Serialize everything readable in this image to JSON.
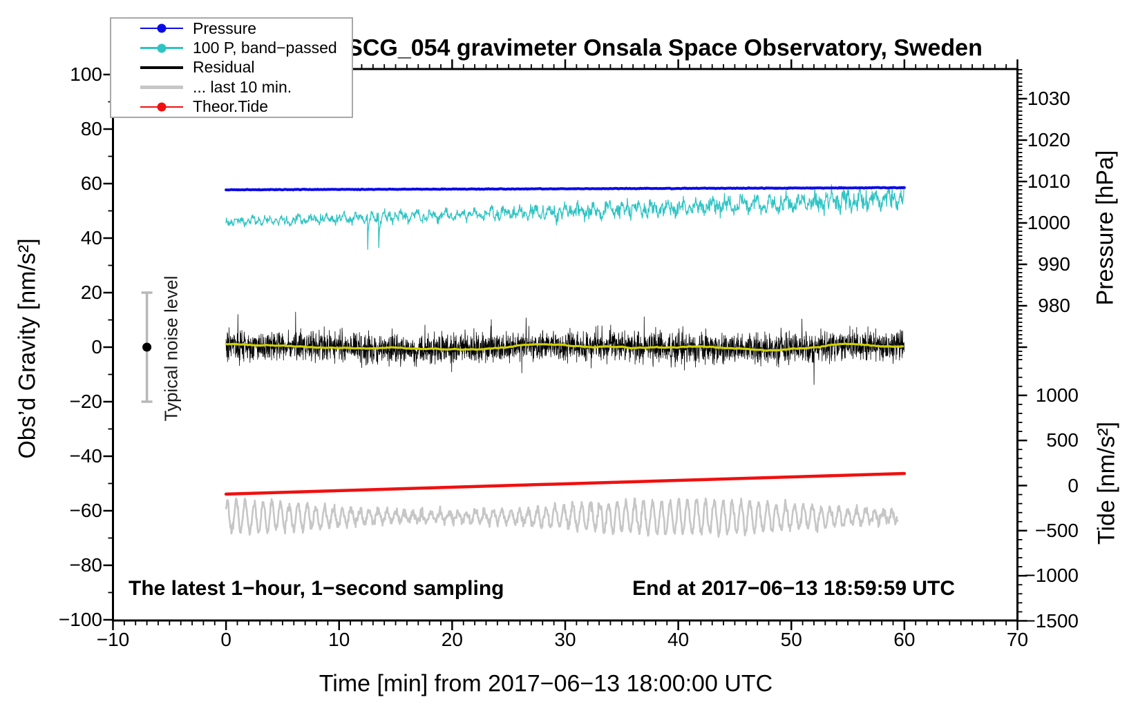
{
  "title": "SCG_054 gravimeter Onsala Space Observatory, Sweden",
  "annotations": {
    "sampling_note": "The latest 1−hour, 1−second sampling",
    "end_note": "End at 2017−06−13 18:59:59 UTC",
    "noise_label": "Typical noise level"
  },
  "legend": {
    "items": [
      {
        "label": "Pressure",
        "color": "#0b0be8",
        "marker": "dot",
        "line_width": 2.5
      },
      {
        "label": "100 P, band−passed",
        "color": "#2fc4c4",
        "marker": "dot",
        "line_width": 2.5
      },
      {
        "label": "Residual",
        "color": "#000000",
        "marker": "none",
        "line_width": 4
      },
      {
        "label": "... last 10 min.",
        "color": "#c6c6c6",
        "marker": "none",
        "line_width": 4.5
      },
      {
        "label": "Theor.Tide",
        "color": "#f01010",
        "marker": "dot",
        "line_width": 2.5
      }
    ]
  },
  "axes": {
    "x": {
      "title": "Time [min] from 2017−06−13 18:00:00 UTC",
      "min": -10,
      "max": 70,
      "minor_step": 1,
      "tick_values": [
        -10,
        0,
        10,
        20,
        30,
        40,
        50,
        60,
        70
      ],
      "tick_labels": [
        "−10",
        "0",
        "10",
        "20",
        "30",
        "40",
        "50",
        "60",
        "70"
      ]
    },
    "gravity": {
      "title": "Obs’d Gravity [nm/s²]",
      "min": -100,
      "max": 100,
      "minor_step": 10,
      "tick_values": [
        100,
        80,
        60,
        40,
        20,
        0,
        -20,
        -40,
        -60,
        -80,
        -100
      ],
      "tick_labels": [
        "100",
        "80",
        "60",
        "40",
        "20",
        "0",
        "−20",
        "−40",
        "−60",
        "−80",
        "−100"
      ]
    },
    "pressure": {
      "title": "Pressure [hPa]",
      "minor_step": 1,
      "tick_values": [
        1030,
        1020,
        1010,
        1000,
        990,
        980
      ],
      "tick_labels": [
        "1030",
        "1020",
        "1010",
        "1000",
        "990",
        "980"
      ]
    },
    "tide": {
      "title": "Tide [nm/s²]",
      "minor_step": 100,
      "tick_values": [
        1000,
        500,
        0,
        -500,
        -1000,
        -1500
      ],
      "tick_labels": [
        "1000",
        "500",
        "0",
        "−500",
        "−1000",
        "−1500"
      ]
    }
  },
  "chart_data": {
    "type": "line",
    "seed": 20170613,
    "x_data_range_min": [
      0,
      60
    ],
    "series": [
      {
        "name": "Pressure",
        "axis": "pressure",
        "color": "#0b0be8",
        "style": "thick-line",
        "line_width": 4,
        "approx": {
          "start_hPa": 1008.0,
          "end_hPa": 1008.5,
          "noise_hPa": 0.04
        }
      },
      {
        "name": "100 P, band−passed",
        "axis": "gravity",
        "color": "#2fc4c4",
        "style": "noisy-line",
        "line_width": 1.3,
        "approx": {
          "start": 46.2,
          "end": 54.5,
          "noise_amp_start": 1.3,
          "noise_amp_end": 3.4,
          "early_negative_spikes_to": 35
        }
      },
      {
        "name": "Residual",
        "axis": "gravity",
        "color": "#000000",
        "style": "dense-noise",
        "line_width": 0.8,
        "approx": {
          "mean": 0,
          "std": 2.7,
          "spike_peak": 10
        }
      },
      {
        "name": "Residual smoothed (yellow overlay, unlegended)",
        "axis": "gravity",
        "color": "#d0d000",
        "style": "smooth-line",
        "line_width": 3.2,
        "approx": {
          "mean": 0,
          "amplitude": 1.2
        }
      },
      {
        "name": "... last 10 min.",
        "axis": "gravity",
        "color": "#c6c6c6",
        "style": "wiggly-line",
        "line_width": 2.6,
        "approx": {
          "mean": -62.2,
          "min": -72.5,
          "max": -55.5,
          "x_end": 59.4
        }
      },
      {
        "name": "Theor.Tide",
        "axis": "tide",
        "color": "#f01010",
        "style": "thick-line",
        "line_width": 4.5,
        "approx": {
          "start_nms2": -95,
          "end_nms2": 134
        }
      }
    ],
    "noise_marker": {
      "x_min": -7,
      "center": 0,
      "half_range": 20,
      "bar_color": "#b8b8b8",
      "dot_color": "#000000"
    }
  }
}
